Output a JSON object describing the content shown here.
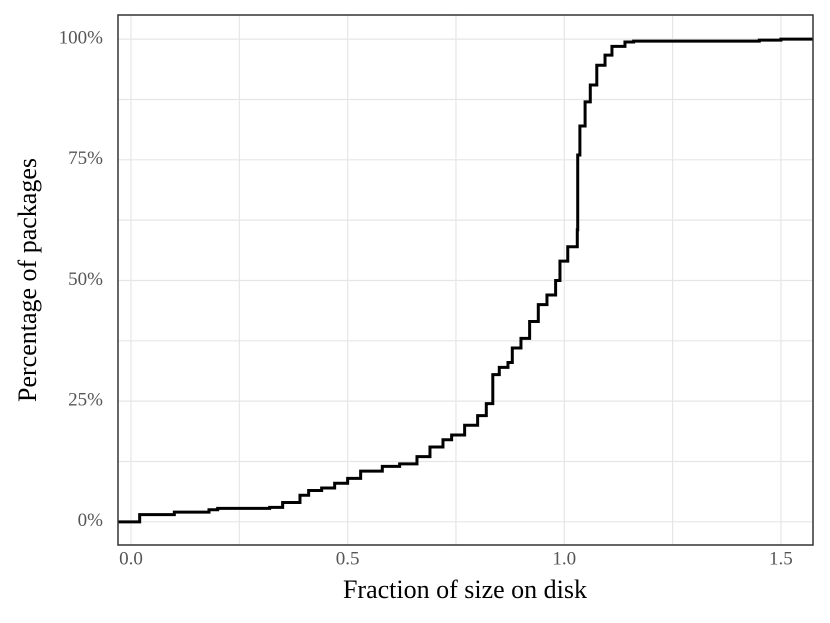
{
  "chart_data": {
    "type": "line",
    "step": "post",
    "x_label": "Fraction of size on disk",
    "y_label": "Percentage of packages",
    "color": "#000000",
    "x": [
      -0.03,
      0.02,
      0.1,
      0.18,
      0.2,
      0.32,
      0.35,
      0.39,
      0.41,
      0.44,
      0.47,
      0.5,
      0.53,
      0.58,
      0.62,
      0.66,
      0.69,
      0.72,
      0.74,
      0.77,
      0.8,
      0.82,
      0.835,
      0.85,
      0.87,
      0.88,
      0.9,
      0.92,
      0.94,
      0.96,
      0.98,
      0.99,
      1.008,
      1.03,
      1.031,
      1.036,
      1.048,
      1.06,
      1.075,
      1.094,
      1.11,
      1.14,
      1.16,
      1.45,
      1.5,
      1.574
    ],
    "values": [
      0,
      1.5,
      2,
      2.5,
      2.8,
      3,
      4,
      5.5,
      6.5,
      7,
      8,
      9,
      10.5,
      11.5,
      12,
      13.5,
      15.5,
      17,
      18,
      20,
      22,
      24.5,
      30.5,
      32,
      33,
      36,
      38,
      41.5,
      45,
      47,
      50,
      54,
      57,
      60.5,
      76,
      82,
      87,
      90.5,
      94.6,
      96.7,
      98.5,
      99.4,
      99.6,
      99.8,
      100,
      100
    ],
    "xlim": [
      -0.03,
      1.574
    ],
    "ylim": [
      -4.8,
      105
    ],
    "xticks": [
      {
        "value": 0,
        "label": "0.0"
      },
      0.5,
      {
        "value": 1,
        "label": "1.0"
      },
      1.5
    ],
    "yticks": [
      {
        "value": 0,
        "label": "0%"
      },
      {
        "value": 25,
        "label": "25%"
      },
      {
        "value": 50,
        "label": "50%"
      },
      {
        "value": 75,
        "label": "75%"
      },
      {
        "value": 100,
        "label": "100%"
      }
    ],
    "x_minor_grid": [
      0.25,
      0.75,
      1.25
    ],
    "y_minor_grid": [
      12.5,
      37.5,
      62.5,
      87.5
    ],
    "grid": true
  }
}
